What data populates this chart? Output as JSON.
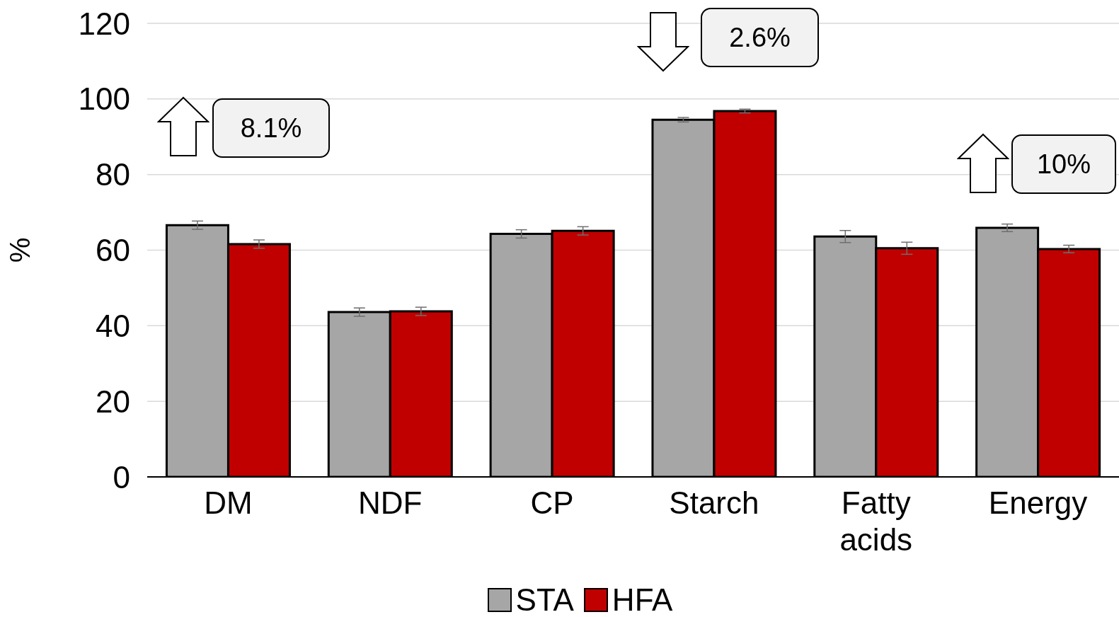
{
  "chart_data": {
    "type": "bar",
    "ylabel": "%",
    "categories": [
      "DM",
      "NDF",
      "CP",
      "Starch",
      "Fatty acids",
      "Energy"
    ],
    "series": [
      {
        "name": "STA",
        "color": "#a6a6a6",
        "values": [
          66.6,
          43.6,
          64.3,
          94.5,
          63.6,
          65.9
        ],
        "errors": [
          1.1,
          1.1,
          1.1,
          0.6,
          1.6,
          1.0
        ]
      },
      {
        "name": "HFA",
        "color": "#c00000",
        "values": [
          61.6,
          43.8,
          65.1,
          96.8,
          60.5,
          60.3
        ],
        "errors": [
          1.1,
          1.1,
          1.1,
          0.5,
          1.6,
          1.0
        ]
      }
    ],
    "ylim": [
      0,
      120
    ],
    "yticks": [
      0,
      20,
      40,
      60,
      80,
      100,
      120
    ],
    "grid": "y",
    "legend": "bottom",
    "annotations": [
      "8.1%",
      "2.6%",
      "10%"
    ]
  }
}
